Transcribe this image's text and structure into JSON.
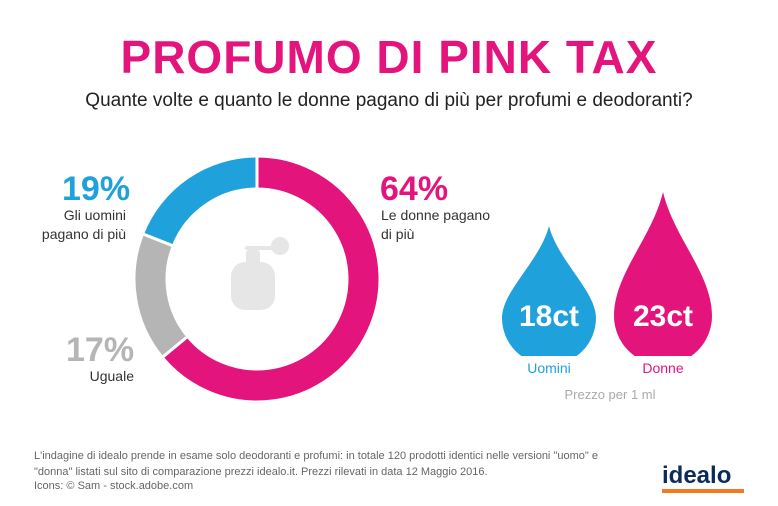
{
  "header": {
    "title": "PROFUMO DI PINK TAX",
    "subtitle": "Quante volte e quanto le donne pagano di più per profumi e deodoranti?"
  },
  "colors": {
    "pink": "#e3147c",
    "blue": "#1fa1dc",
    "grey": "#b5b5b5",
    "brand": "#0b2c5a",
    "brand_accent": "#f47920"
  },
  "chart_data": [
    {
      "type": "pie",
      "variant": "donut",
      "center_icon": "perfume-bottle-icon",
      "slices": [
        {
          "pct_label": "64%",
          "label": "Le donne pagano di più",
          "value": 64,
          "color": "#e3147c"
        },
        {
          "pct_label": "17%",
          "label": "Uguale",
          "value": 17,
          "color": "#b5b5b5"
        },
        {
          "pct_label": "19%",
          "label": "Gli uomini pagano di più",
          "value": 19,
          "color": "#1fa1dc"
        }
      ]
    },
    {
      "type": "bar",
      "variant": "drops",
      "categories": [
        "Uomini",
        "Donne"
      ],
      "values": [
        18,
        23
      ],
      "value_labels": [
        "18ct",
        "23ct"
      ],
      "colors": [
        "#1fa1dc",
        "#e3147c"
      ],
      "note": "Prezzo per 1 ml"
    }
  ],
  "footer": {
    "note": "L'indagine di idealo prende in esame solo deodoranti e profumi: in totale 120 prodotti identici nelle versioni \"uomo\" e \"donna\" listati sul sito di comparazione prezzi idealo.it. Prezzi rilevati in data 12 Maggio 2016.",
    "credits": "Icons: © Sam - stock.adobe.com",
    "logo": "idealo"
  }
}
